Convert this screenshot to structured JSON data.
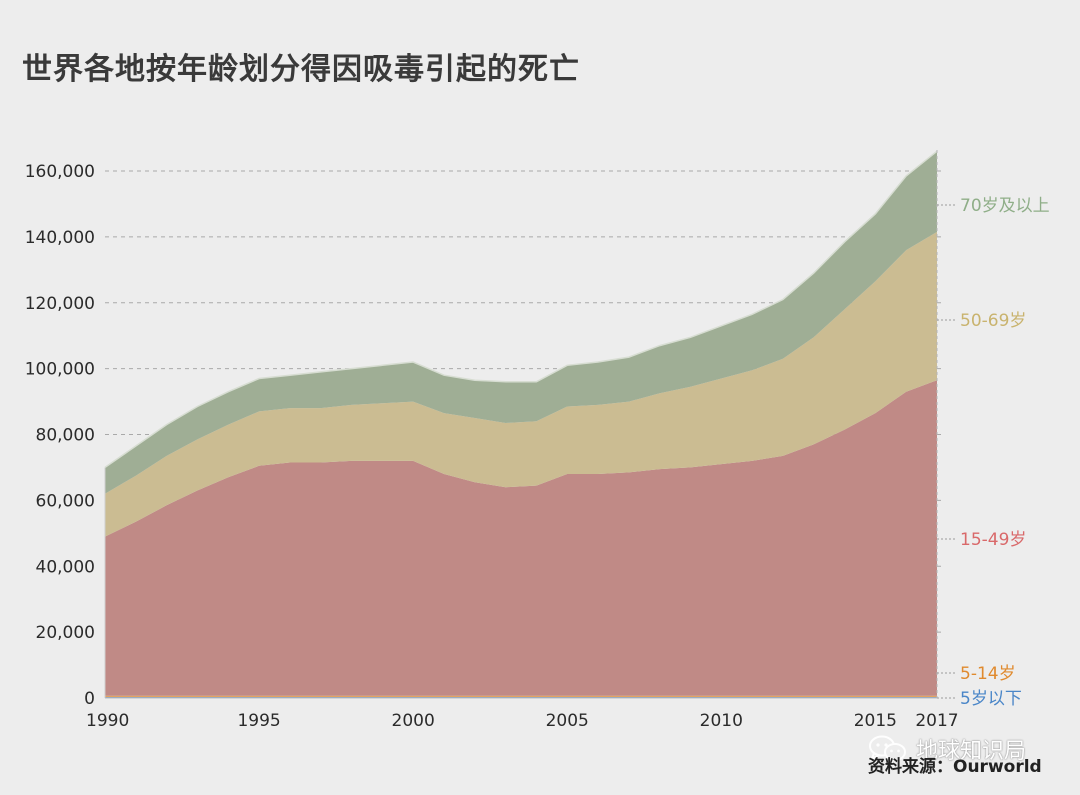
{
  "title": "世界各地按年龄划分得因吸毒引起的死亡",
  "source": "资料来源：Ourworld",
  "watermark": {
    "text": "地球知识局",
    "icon": "wechat-chat-bubble-icon"
  },
  "colors": {
    "background": "#ededed",
    "under5": "#7b9bc4",
    "age5_14": "#e3a25e",
    "age15_49": "#c08a86",
    "age50_69": "#cbbc92",
    "age70plus": "#9fae95",
    "label_under5": "#4a86c8",
    "label_5_14": "#e08a2e",
    "label_15_49": "#d9696a",
    "label_50_69": "#c9b36e",
    "label_70plus": "#8fae88",
    "gridline": "#a9a9a9",
    "axis_text": "#2b2b2b"
  },
  "chart_data": {
    "type": "area",
    "stacked": true,
    "title": "世界各地按年龄划分得因吸毒引起的死亡",
    "xlabel": "",
    "ylabel": "",
    "x": [
      1990,
      1991,
      1992,
      1993,
      1994,
      1995,
      1996,
      1997,
      1998,
      1999,
      2000,
      2001,
      2002,
      2003,
      2004,
      2005,
      2006,
      2007,
      2008,
      2009,
      2010,
      2011,
      2012,
      2013,
      2014,
      2015,
      2016,
      2017
    ],
    "xlim": [
      1990,
      2017
    ],
    "ylim": [
      0,
      170000
    ],
    "x_ticks": [
      {
        "value": 1990,
        "label": "1990"
      },
      {
        "value": 1995,
        "label": "1995"
      },
      {
        "value": 2000,
        "label": "2000"
      },
      {
        "value": 2005,
        "label": "2005"
      },
      {
        "value": 2010,
        "label": "2010"
      },
      {
        "value": 2015,
        "label": "2015"
      },
      {
        "value": 2017,
        "label": "2017"
      }
    ],
    "y_ticks": [
      {
        "value": 0,
        "label": "0"
      },
      {
        "value": 20000,
        "label": "20,000"
      },
      {
        "value": 40000,
        "label": "40,000"
      },
      {
        "value": 60000,
        "label": "60,000"
      },
      {
        "value": 80000,
        "label": "80,000"
      },
      {
        "value": 100000,
        "label": "100,000"
      },
      {
        "value": 120000,
        "label": "120,000"
      },
      {
        "value": 140000,
        "label": "140,000"
      },
      {
        "value": 160000,
        "label": "160,000"
      }
    ],
    "gridlines": true,
    "legend": "right-side labels",
    "series": [
      {
        "name": "5岁以下",
        "key": "under5",
        "color": "#7b9bc4",
        "label_color": "#4a86c8",
        "values": [
          300,
          300,
          300,
          300,
          300,
          300,
          300,
          300,
          300,
          300,
          300,
          300,
          300,
          300,
          300,
          300,
          300,
          300,
          300,
          300,
          300,
          300,
          300,
          300,
          300,
          300,
          300,
          300
        ]
      },
      {
        "name": "5-14岁",
        "key": "age5_14",
        "color": "#e3a25e",
        "label_color": "#e08a2e",
        "values": [
          400,
          400,
          400,
          400,
          400,
          400,
          400,
          400,
          400,
          400,
          400,
          400,
          400,
          400,
          400,
          400,
          400,
          400,
          400,
          400,
          400,
          400,
          400,
          400,
          400,
          400,
          400,
          400
        ]
      },
      {
        "name": "15-49岁",
        "key": "age15_49",
        "color": "#c08a86",
        "label_color": "#d9696a",
        "values": [
          48300,
          52800,
          57800,
          62300,
          66300,
          69800,
          70800,
          70800,
          71300,
          71300,
          71300,
          67300,
          64800,
          63300,
          63800,
          67300,
          67300,
          67800,
          68800,
          69300,
          70300,
          71300,
          72800,
          76300,
          80800,
          85800,
          92300,
          95800
        ]
      },
      {
        "name": "50-69岁",
        "key": "age50_69",
        "color": "#cbbc92",
        "label_color": "#c9b36e",
        "values": [
          13000,
          14000,
          15000,
          15500,
          16000,
          16500,
          16500,
          16500,
          17000,
          17500,
          18000,
          18500,
          19500,
          19500,
          19500,
          20500,
          21000,
          21500,
          23000,
          24500,
          26000,
          27500,
          29500,
          32500,
          36500,
          40000,
          43000,
          45000
        ]
      },
      {
        "name": "70岁及以上",
        "key": "age70plus",
        "color": "#9fae95",
        "label_color": "#8fae88",
        "values": [
          8000,
          9000,
          9500,
          10000,
          10000,
          10000,
          10000,
          11000,
          11000,
          11500,
          12000,
          11500,
          11500,
          12500,
          12000,
          12500,
          13000,
          13500,
          14500,
          15000,
          16000,
          17000,
          18000,
          19500,
          20500,
          20500,
          22500,
          24500
        ]
      }
    ]
  }
}
